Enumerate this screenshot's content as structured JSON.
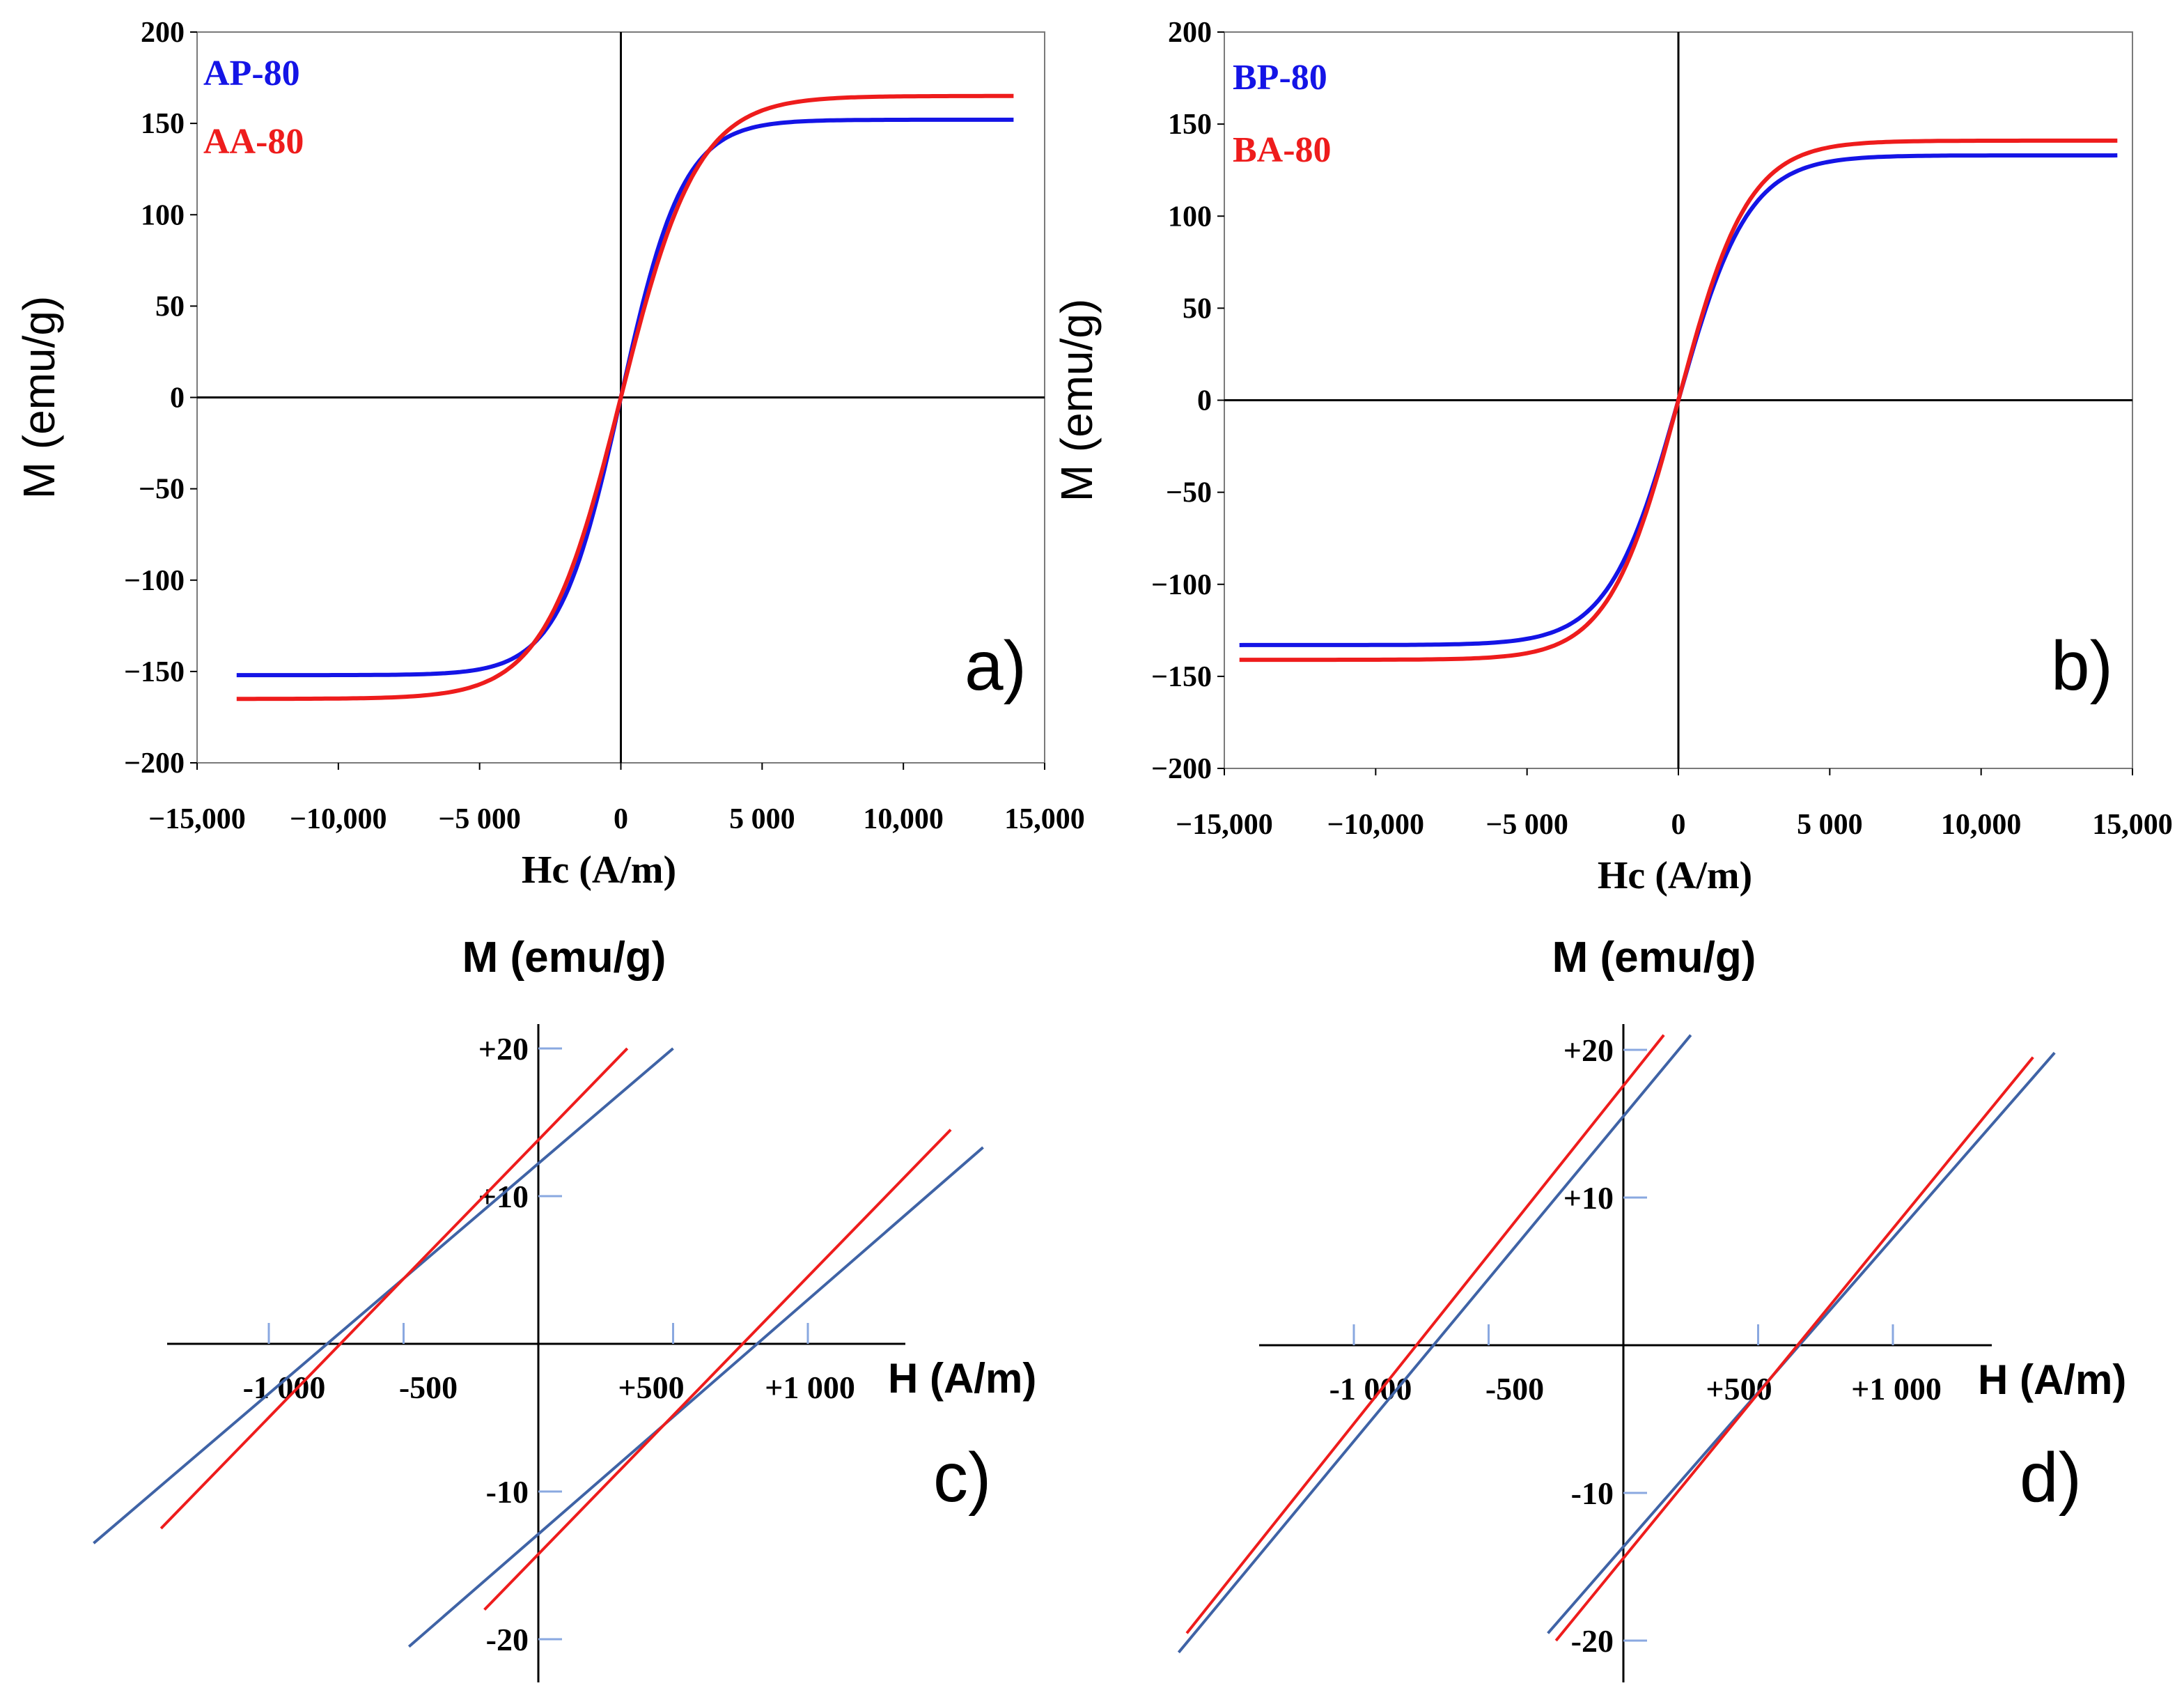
{
  "colors": {
    "blue": "#1414e6",
    "red": "#ee1c1c",
    "steel": "#3f63a6",
    "tick_blue": "#8aa8e0",
    "axis": "#000000",
    "frame": "#7a7a7a"
  },
  "chart_data": [
    {
      "id": "a",
      "type": "line",
      "panel_label": "a)",
      "xlabel": "Hc (A/m)",
      "ylabel": "M (emu/g)",
      "xlim": [
        -15000,
        15000
      ],
      "ylim": [
        -200,
        200
      ],
      "x_tick_labels": [
        "−15,000",
        "−10,000",
        "−5 000",
        "0",
        "5 000",
        "10,000",
        "15,000"
      ],
      "y_tick_labels": [
        "200",
        "150",
        "100",
        "50",
        "0",
        "−50",
        "−100",
        "−150",
        "−200"
      ],
      "series": [
        {
          "name": "AP-80",
          "color_key": "blue",
          "ms": 152,
          "h0": 2200,
          "xmin": -13600,
          "xmax": 13900
        },
        {
          "name": "AA-80",
          "color_key": "red",
          "ms": 165,
          "h0": 2700,
          "xmin": -13600,
          "xmax": 13900
        }
      ]
    },
    {
      "id": "b",
      "type": "line",
      "panel_label": "b)",
      "xlabel": "Hc (A/m)",
      "ylabel": "M (emu/g)",
      "xlim": [
        -15000,
        15000
      ],
      "ylim": [
        -200,
        200
      ],
      "x_tick_labels": [
        "−15,000",
        "−10,000",
        "−5 000",
        "0",
        "5 000",
        "10,000",
        "15,000"
      ],
      "y_tick_labels": [
        "200",
        "150",
        "100",
        "50",
        "0",
        "−50",
        "−100",
        "−150",
        "−200"
      ],
      "series": [
        {
          "name": "BP-80",
          "color_key": "blue",
          "ms": 133,
          "h0": 2300,
          "xmin": -14500,
          "xmax": 14500
        },
        {
          "name": "BA-80",
          "color_key": "red",
          "ms": 141,
          "h0": 2300,
          "xmin": -14500,
          "xmax": 14500
        }
      ]
    },
    {
      "id": "c",
      "type": "line",
      "panel_label": "c)",
      "xlabel": "H (A/m)",
      "ylabel": "M (emu/g)",
      "x_tick_values": [
        -1000,
        -500,
        500,
        1000
      ],
      "x_tick_labels": [
        "-1 000",
        "-500",
        "+500",
        "+1 000"
      ],
      "y_tick_values": [
        20,
        10,
        -10,
        -20
      ],
      "y_tick_labels": [
        "+20",
        "+10",
        "-10",
        "-20"
      ],
      "series": [
        {
          "name": "AP-80 upper branch",
          "color_key": "steel",
          "points": [
            [
              -1650,
              -13.5
            ],
            [
              500,
              20
            ]
          ]
        },
        {
          "name": "AA-80 upper branch",
          "color_key": "red",
          "points": [
            [
              -1400,
              -12.5
            ],
            [
              330,
              20
            ]
          ]
        },
        {
          "name": "AP-80 lower branch",
          "color_key": "steel",
          "points": [
            [
              -480,
              -20.5
            ],
            [
              1650,
              13.3
            ]
          ]
        },
        {
          "name": "AA-80 lower branch",
          "color_key": "red",
          "points": [
            [
              -200,
              -18
            ],
            [
              1530,
              14.5
            ]
          ]
        }
      ]
    },
    {
      "id": "d",
      "type": "line",
      "panel_label": "d)",
      "xlabel": "H (A/m)",
      "ylabel": "M (emu/g)",
      "x_tick_values": [
        -1000,
        -500,
        500,
        1000
      ],
      "x_tick_labels": [
        "-1 000",
        "-500",
        "+500",
        "+1 000"
      ],
      "y_tick_values": [
        20,
        10,
        -10,
        -20
      ],
      "y_tick_labels": [
        "+20",
        "+10",
        "-10",
        "-20"
      ],
      "series": [
        {
          "name": "BP-80 upper branch",
          "color_key": "steel",
          "points": [
            [
              -1650,
              -20.8
            ],
            [
              250,
              21
            ]
          ]
        },
        {
          "name": "BA-80 upper branch",
          "color_key": "red",
          "points": [
            [
              -1620,
              -19.5
            ],
            [
              150,
              21
            ]
          ]
        },
        {
          "name": "BP-80 lower branch",
          "color_key": "steel",
          "points": [
            [
              -280,
              -19.5
            ],
            [
              1600,
              19.8
            ]
          ]
        },
        {
          "name": "BA-80 lower branch",
          "color_key": "red",
          "points": [
            [
              -250,
              -20
            ],
            [
              1520,
              19.5
            ]
          ]
        }
      ]
    }
  ]
}
